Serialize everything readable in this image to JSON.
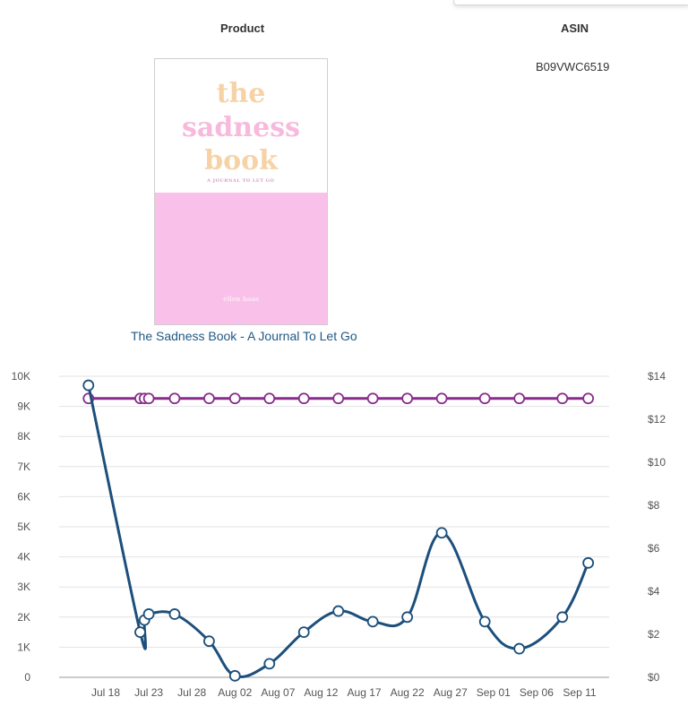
{
  "header": {
    "product": "Product",
    "asin": "ASIN"
  },
  "product": {
    "asin": "B09VWC6519",
    "title": "The Sadness Book - A Journal To Let Go",
    "cover": {
      "line1": "the",
      "line2": "sadness",
      "line3": "book",
      "subtitle": "A JOURNAL TO LET GO",
      "author": "ellen haas",
      "colors": {
        "pink": "#f9c1e9",
        "peach": "#f6d3a6"
      }
    }
  },
  "chart_data": {
    "type": "line",
    "x_tick_labels": [
      "Jul 18",
      "Jul 23",
      "Jul 28",
      "Aug 02",
      "Aug 07",
      "Aug 12",
      "Aug 17",
      "Aug 22",
      "Aug 27",
      "Sep 01",
      "Sep 06",
      "Sep 11"
    ],
    "y_left": {
      "ylim": [
        0,
        10000
      ],
      "tick_labels": [
        "0",
        "1K",
        "2K",
        "3K",
        "4K",
        "5K",
        "6K",
        "7K",
        "8K",
        "9K",
        "10K"
      ]
    },
    "y_right": {
      "ylim": [
        0,
        14
      ],
      "tick_labels": [
        "$0",
        "$2",
        "$4",
        "$6",
        "$8",
        "$10",
        "$12",
        "$14"
      ]
    },
    "grid": true,
    "legend": "none",
    "series": [
      {
        "axis": "left",
        "color": "#1c4f7c",
        "x": [
          "Jul 16",
          "Jul 22",
          "Jul 22.5",
          "Jul 23",
          "Jul 26",
          "Jul 30",
          "Aug 02",
          "Aug 06",
          "Aug 10",
          "Aug 14",
          "Aug 18",
          "Aug 22",
          "Aug 26",
          "Aug 31",
          "Sep 04",
          "Sep 09",
          "Sep 12"
        ],
        "values": [
          9700,
          1500,
          1900,
          2100,
          2100,
          1200,
          50,
          450,
          1500,
          2200,
          1850,
          2000,
          4800,
          1850,
          950,
          2000,
          3800
        ]
      },
      {
        "axis": "right",
        "color": "#8a2c8c",
        "x": [
          "Jul 16",
          "Jul 22",
          "Jul 22.5",
          "Jul 23",
          "Jul 26",
          "Jul 30",
          "Aug 02",
          "Aug 06",
          "Aug 10",
          "Aug 14",
          "Aug 18",
          "Aug 22",
          "Aug 26",
          "Aug 31",
          "Sep 04",
          "Sep 09",
          "Sep 12"
        ],
        "values": [
          12.97,
          12.97,
          12.97,
          12.97,
          12.97,
          12.97,
          12.97,
          12.97,
          12.97,
          12.97,
          12.97,
          12.97,
          12.97,
          12.97,
          12.97,
          12.97,
          12.97
        ]
      }
    ]
  }
}
